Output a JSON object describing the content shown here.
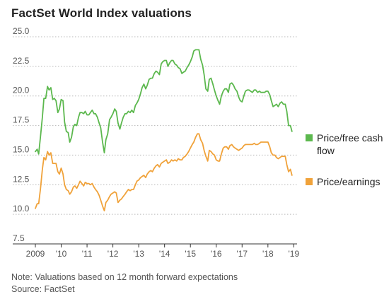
{
  "chart_data": {
    "type": "line",
    "title": "FactSet World Index valuations",
    "note": "Note: Valuations based on 12 month forward expectations",
    "source": "Source: FactSet",
    "xlim": [
      2009.0,
      2019.1
    ],
    "ylim": [
      7.5,
      25.0
    ],
    "y_ticks": [
      "25.0",
      "22.5",
      "20.0",
      "17.5",
      "15.0",
      "12.5",
      "10.0",
      "7.5"
    ],
    "x_ticks": [
      "2009",
      "'10",
      "'11",
      "'12",
      "'13",
      "'14",
      "'15",
      "'16",
      "'17",
      "'18",
      "'19"
    ],
    "grid": "horizontal dotted",
    "legend": "right",
    "series": [
      {
        "name": "Price/free cash flow",
        "color": "#5cb84e",
        "points": [
          [
            2009.0,
            15.3
          ],
          [
            2009.07,
            15.5
          ],
          [
            2009.13,
            15.1
          ],
          [
            2009.2,
            16.6
          ],
          [
            2009.27,
            18.2
          ],
          [
            2009.33,
            19.8
          ],
          [
            2009.4,
            19.8
          ],
          [
            2009.47,
            20.8
          ],
          [
            2009.53,
            20.5
          ],
          [
            2009.6,
            20.7
          ],
          [
            2009.67,
            19.7
          ],
          [
            2009.73,
            19.8
          ],
          [
            2009.8,
            19.6
          ],
          [
            2009.87,
            18.6
          ],
          [
            2009.93,
            18.9
          ],
          [
            2010.0,
            19.7
          ],
          [
            2010.07,
            19.6
          ],
          [
            2010.13,
            17.8
          ],
          [
            2010.2,
            17.0
          ],
          [
            2010.27,
            16.9
          ],
          [
            2010.33,
            16.1
          ],
          [
            2010.4,
            16.5
          ],
          [
            2010.47,
            17.4
          ],
          [
            2010.53,
            17.6
          ],
          [
            2010.6,
            17.5
          ],
          [
            2010.67,
            18.2
          ],
          [
            2010.73,
            18.6
          ],
          [
            2010.8,
            18.6
          ],
          [
            2010.87,
            18.5
          ],
          [
            2010.93,
            18.7
          ],
          [
            2011.0,
            18.4
          ],
          [
            2011.07,
            18.4
          ],
          [
            2011.13,
            18.6
          ],
          [
            2011.2,
            18.8
          ],
          [
            2011.27,
            18.5
          ],
          [
            2011.33,
            18.5
          ],
          [
            2011.4,
            18.2
          ],
          [
            2011.47,
            17.7
          ],
          [
            2011.53,
            17.3
          ],
          [
            2011.6,
            16.1
          ],
          [
            2011.67,
            15.2
          ],
          [
            2011.73,
            16.3
          ],
          [
            2011.8,
            16.8
          ],
          [
            2011.87,
            18.0
          ],
          [
            2011.93,
            18.2
          ],
          [
            2012.0,
            18.5
          ],
          [
            2012.07,
            18.9
          ],
          [
            2012.13,
            18.7
          ],
          [
            2012.2,
            17.7
          ],
          [
            2012.27,
            17.2
          ],
          [
            2012.33,
            17.7
          ],
          [
            2012.4,
            18.2
          ],
          [
            2012.47,
            18.5
          ],
          [
            2012.53,
            18.5
          ],
          [
            2012.6,
            18.7
          ],
          [
            2012.67,
            18.6
          ],
          [
            2012.73,
            18.8
          ],
          [
            2012.8,
            18.6
          ],
          [
            2012.87,
            19.2
          ],
          [
            2012.93,
            19.4
          ],
          [
            2013.0,
            19.7
          ],
          [
            2013.07,
            20.2
          ],
          [
            2013.13,
            20.7
          ],
          [
            2013.2,
            21.0
          ],
          [
            2013.27,
            20.6
          ],
          [
            2013.33,
            20.9
          ],
          [
            2013.4,
            21.4
          ],
          [
            2013.47,
            21.5
          ],
          [
            2013.53,
            21.5
          ],
          [
            2013.6,
            21.9
          ],
          [
            2013.67,
            22.1
          ],
          [
            2013.73,
            22.0
          ],
          [
            2013.8,
            21.8
          ],
          [
            2013.87,
            22.7
          ],
          [
            2013.93,
            22.9
          ],
          [
            2014.0,
            23.0
          ],
          [
            2014.07,
            23.0
          ],
          [
            2014.13,
            22.5
          ],
          [
            2014.2,
            22.8
          ],
          [
            2014.27,
            23.0
          ],
          [
            2014.33,
            23.0
          ],
          [
            2014.4,
            22.7
          ],
          [
            2014.47,
            22.6
          ],
          [
            2014.53,
            22.4
          ],
          [
            2014.6,
            22.3
          ],
          [
            2014.67,
            21.9
          ],
          [
            2014.73,
            22.0
          ],
          [
            2014.8,
            22.1
          ],
          [
            2014.87,
            22.4
          ],
          [
            2014.93,
            22.6
          ],
          [
            2015.0,
            22.9
          ],
          [
            2015.07,
            23.3
          ],
          [
            2015.13,
            23.8
          ],
          [
            2015.2,
            23.9
          ],
          [
            2015.27,
            23.9
          ],
          [
            2015.33,
            23.9
          ],
          [
            2015.4,
            23.1
          ],
          [
            2015.47,
            22.6
          ],
          [
            2015.53,
            21.8
          ],
          [
            2015.6,
            20.6
          ],
          [
            2015.67,
            20.4
          ],
          [
            2015.73,
            21.4
          ],
          [
            2015.8,
            21.5
          ],
          [
            2015.87,
            21.0
          ],
          [
            2015.93,
            20.5
          ],
          [
            2016.0,
            20.0
          ],
          [
            2016.07,
            19.6
          ],
          [
            2016.13,
            19.3
          ],
          [
            2016.2,
            20.0
          ],
          [
            2016.27,
            20.4
          ],
          [
            2016.33,
            20.6
          ],
          [
            2016.4,
            20.6
          ],
          [
            2016.47,
            20.3
          ],
          [
            2016.53,
            21.0
          ],
          [
            2016.6,
            21.1
          ],
          [
            2016.67,
            20.9
          ],
          [
            2016.73,
            20.6
          ],
          [
            2016.8,
            20.4
          ],
          [
            2016.87,
            19.9
          ],
          [
            2016.93,
            19.6
          ],
          [
            2017.0,
            19.5
          ],
          [
            2017.07,
            20.0
          ],
          [
            2017.13,
            20.4
          ],
          [
            2017.2,
            20.5
          ],
          [
            2017.27,
            20.5
          ],
          [
            2017.33,
            20.4
          ],
          [
            2017.4,
            20.3
          ],
          [
            2017.47,
            20.5
          ],
          [
            2017.53,
            20.5
          ],
          [
            2017.6,
            20.3
          ],
          [
            2017.67,
            20.4
          ],
          [
            2017.73,
            20.3
          ],
          [
            2017.8,
            20.3
          ],
          [
            2017.87,
            20.3
          ],
          [
            2017.93,
            20.4
          ],
          [
            2018.0,
            20.4
          ],
          [
            2018.07,
            20.1
          ],
          [
            2018.13,
            19.6
          ],
          [
            2018.2,
            19.1
          ],
          [
            2018.27,
            19.2
          ],
          [
            2018.33,
            19.3
          ],
          [
            2018.4,
            19.1
          ],
          [
            2018.47,
            19.4
          ],
          [
            2018.53,
            19.5
          ],
          [
            2018.6,
            19.3
          ],
          [
            2018.67,
            19.3
          ],
          [
            2018.73,
            18.7
          ],
          [
            2018.8,
            17.5
          ],
          [
            2018.87,
            17.5
          ],
          [
            2018.93,
            17.0
          ]
        ]
      },
      {
        "name": "Price/earnings",
        "color": "#f0a23a",
        "points": [
          [
            2009.0,
            10.5
          ],
          [
            2009.07,
            10.9
          ],
          [
            2009.13,
            10.9
          ],
          [
            2009.2,
            12.2
          ],
          [
            2009.27,
            13.8
          ],
          [
            2009.33,
            14.8
          ],
          [
            2009.4,
            14.6
          ],
          [
            2009.47,
            15.3
          ],
          [
            2009.53,
            15.0
          ],
          [
            2009.6,
            15.2
          ],
          [
            2009.67,
            14.3
          ],
          [
            2009.73,
            14.3
          ],
          [
            2009.8,
            14.3
          ],
          [
            2009.87,
            13.6
          ],
          [
            2009.93,
            13.4
          ],
          [
            2010.0,
            13.9
          ],
          [
            2010.07,
            13.4
          ],
          [
            2010.13,
            12.5
          ],
          [
            2010.2,
            12.1
          ],
          [
            2010.27,
            12.0
          ],
          [
            2010.33,
            11.7
          ],
          [
            2010.4,
            11.9
          ],
          [
            2010.47,
            12.3
          ],
          [
            2010.53,
            12.4
          ],
          [
            2010.6,
            12.2
          ],
          [
            2010.67,
            12.5
          ],
          [
            2010.73,
            12.8
          ],
          [
            2010.8,
            12.6
          ],
          [
            2010.87,
            12.4
          ],
          [
            2010.93,
            12.7
          ],
          [
            2011.0,
            12.6
          ],
          [
            2011.07,
            12.6
          ],
          [
            2011.13,
            12.5
          ],
          [
            2011.2,
            12.6
          ],
          [
            2011.27,
            12.3
          ],
          [
            2011.33,
            12.1
          ],
          [
            2011.4,
            11.9
          ],
          [
            2011.47,
            11.6
          ],
          [
            2011.53,
            11.2
          ],
          [
            2011.6,
            10.7
          ],
          [
            2011.67,
            10.3
          ],
          [
            2011.73,
            11.0
          ],
          [
            2011.8,
            11.2
          ],
          [
            2011.87,
            11.5
          ],
          [
            2011.93,
            11.7
          ],
          [
            2012.0,
            11.8
          ],
          [
            2012.07,
            11.9
          ],
          [
            2012.13,
            11.8
          ],
          [
            2012.2,
            11.0
          ],
          [
            2012.27,
            11.2
          ],
          [
            2012.33,
            11.3
          ],
          [
            2012.4,
            11.5
          ],
          [
            2012.47,
            11.7
          ],
          [
            2012.53,
            11.9
          ],
          [
            2012.6,
            12.1
          ],
          [
            2012.67,
            12.0
          ],
          [
            2012.73,
            12.1
          ],
          [
            2012.8,
            12.1
          ],
          [
            2012.87,
            12.5
          ],
          [
            2012.93,
            12.8
          ],
          [
            2013.0,
            12.9
          ],
          [
            2013.07,
            13.1
          ],
          [
            2013.13,
            13.2
          ],
          [
            2013.2,
            13.3
          ],
          [
            2013.27,
            13.1
          ],
          [
            2013.33,
            13.4
          ],
          [
            2013.4,
            13.6
          ],
          [
            2013.47,
            13.7
          ],
          [
            2013.53,
            13.6
          ],
          [
            2013.6,
            13.9
          ],
          [
            2013.67,
            14.1
          ],
          [
            2013.73,
            14.2
          ],
          [
            2013.8,
            14.0
          ],
          [
            2013.87,
            14.3
          ],
          [
            2013.93,
            14.4
          ],
          [
            2014.0,
            14.5
          ],
          [
            2014.07,
            14.6
          ],
          [
            2014.13,
            14.3
          ],
          [
            2014.2,
            14.4
          ],
          [
            2014.27,
            14.6
          ],
          [
            2014.33,
            14.5
          ],
          [
            2014.4,
            14.6
          ],
          [
            2014.47,
            14.5
          ],
          [
            2014.53,
            14.7
          ],
          [
            2014.6,
            14.6
          ],
          [
            2014.67,
            14.6
          ],
          [
            2014.73,
            14.8
          ],
          [
            2014.8,
            14.9
          ],
          [
            2014.87,
            15.1
          ],
          [
            2014.93,
            15.3
          ],
          [
            2015.0,
            15.6
          ],
          [
            2015.07,
            15.9
          ],
          [
            2015.13,
            16.1
          ],
          [
            2015.2,
            16.5
          ],
          [
            2015.27,
            16.8
          ],
          [
            2015.33,
            16.8
          ],
          [
            2015.4,
            16.3
          ],
          [
            2015.47,
            16.0
          ],
          [
            2015.53,
            15.4
          ],
          [
            2015.6,
            14.9
          ],
          [
            2015.67,
            14.5
          ],
          [
            2015.73,
            15.4
          ],
          [
            2015.8,
            15.3
          ],
          [
            2015.87,
            15.1
          ],
          [
            2015.93,
            15.0
          ],
          [
            2016.0,
            14.6
          ],
          [
            2016.07,
            14.5
          ],
          [
            2016.13,
            14.5
          ],
          [
            2016.2,
            15.1
          ],
          [
            2016.27,
            15.6
          ],
          [
            2016.33,
            15.7
          ],
          [
            2016.4,
            15.7
          ],
          [
            2016.47,
            15.5
          ],
          [
            2016.53,
            15.8
          ],
          [
            2016.6,
            15.9
          ],
          [
            2016.67,
            15.7
          ],
          [
            2016.73,
            15.6
          ],
          [
            2016.8,
            15.5
          ],
          [
            2016.87,
            15.4
          ],
          [
            2016.93,
            15.5
          ],
          [
            2017.0,
            15.6
          ],
          [
            2017.07,
            15.8
          ],
          [
            2017.13,
            15.9
          ],
          [
            2017.2,
            15.9
          ],
          [
            2017.27,
            15.9
          ],
          [
            2017.33,
            15.9
          ],
          [
            2017.4,
            15.9
          ],
          [
            2017.47,
            16.0
          ],
          [
            2017.53,
            15.9
          ],
          [
            2017.6,
            15.9
          ],
          [
            2017.67,
            16.0
          ],
          [
            2017.73,
            16.1
          ],
          [
            2017.8,
            16.1
          ],
          [
            2017.87,
            16.1
          ],
          [
            2017.93,
            16.1
          ],
          [
            2018.0,
            16.1
          ],
          [
            2018.07,
            15.7
          ],
          [
            2018.13,
            15.2
          ],
          [
            2018.2,
            15.0
          ],
          [
            2018.27,
            15.0
          ],
          [
            2018.33,
            14.8
          ],
          [
            2018.4,
            14.7
          ],
          [
            2018.47,
            14.8
          ],
          [
            2018.53,
            14.9
          ],
          [
            2018.6,
            14.9
          ],
          [
            2018.67,
            14.9
          ],
          [
            2018.73,
            14.2
          ],
          [
            2018.8,
            13.6
          ],
          [
            2018.87,
            13.8
          ],
          [
            2018.93,
            13.3
          ]
        ]
      }
    ]
  }
}
